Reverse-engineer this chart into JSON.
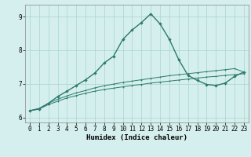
{
  "xlabel": "Humidex (Indice chaleur)",
  "background_color": "#d4efed",
  "line_color": "#2d7a6e",
  "x_data": [
    0,
    1,
    2,
    3,
    4,
    5,
    6,
    7,
    8,
    9,
    10,
    11,
    12,
    13,
    14,
    15,
    16,
    17,
    18,
    19,
    20,
    21,
    22,
    23
  ],
  "line1_y": [
    6.2,
    6.25,
    6.38,
    6.48,
    6.58,
    6.65,
    6.72,
    6.78,
    6.83,
    6.87,
    6.91,
    6.95,
    6.98,
    7.02,
    7.05,
    7.08,
    7.11,
    7.14,
    7.17,
    7.2,
    7.22,
    7.25,
    7.27,
    7.3
  ],
  "line2_y": [
    6.2,
    6.27,
    6.42,
    6.54,
    6.64,
    6.73,
    6.8,
    6.88,
    6.94,
    6.99,
    7.04,
    7.08,
    7.12,
    7.16,
    7.2,
    7.24,
    7.27,
    7.3,
    7.33,
    7.36,
    7.39,
    7.42,
    7.45,
    7.35
  ],
  "main_line_y": [
    6.2,
    6.25,
    6.42,
    6.62,
    6.78,
    6.95,
    7.12,
    7.32,
    7.62,
    7.82,
    8.32,
    8.6,
    8.82,
    9.08,
    8.78,
    8.32,
    7.72,
    7.25,
    7.1,
    6.98,
    6.95,
    7.02,
    7.22,
    7.35
  ],
  "ylim": [
    5.85,
    9.35
  ],
  "yticks": [
    6,
    7,
    8,
    9
  ],
  "xlim": [
    -0.5,
    23.5
  ],
  "xticks": [
    0,
    1,
    2,
    3,
    4,
    5,
    6,
    7,
    8,
    9,
    10,
    11,
    12,
    13,
    14,
    15,
    16,
    17,
    18,
    19,
    20,
    21,
    22,
    23
  ],
  "grid_color": "#aad4ce",
  "axis_fontsize": 6.5,
  "tick_fontsize": 5.5
}
